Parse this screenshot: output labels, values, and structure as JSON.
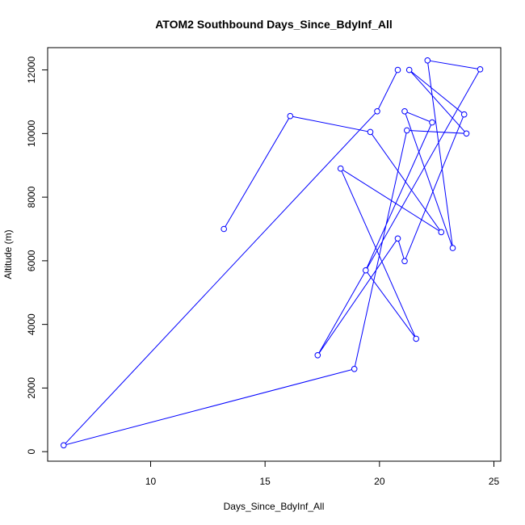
{
  "chart_data": {
    "type": "line",
    "title": "ATOM2 Southbound Days_Since_BdyInf_All",
    "xlabel": "Days_Since_BdyInf_All",
    "ylabel": "Altitude (m)",
    "xlim": [
      5.5,
      25.3
    ],
    "ylim": [
      -300,
      12700
    ],
    "x_ticks": [
      10,
      15,
      20,
      25
    ],
    "y_ticks": [
      0,
      2000,
      4000,
      6000,
      8000,
      10000,
      12000
    ],
    "grid": false,
    "series_color": "#0000ff",
    "series": [
      {
        "marker": "open-circle",
        "x": [
          13.2,
          16.1,
          19.6,
          22.7,
          18.3,
          21.6,
          19.4,
          22.3,
          21.1,
          23.2,
          22.1,
          24.4,
          17.3,
          20.8,
          21.1,
          23.7,
          21.3,
          23.8,
          21.2,
          18.9,
          6.2,
          19.9,
          20.8
        ],
        "y": [
          7000,
          10550,
          10050,
          6900,
          8900,
          3550,
          5700,
          10350,
          10700,
          6400,
          12300,
          12020,
          3030,
          6700,
          5990,
          10600,
          12000,
          10000,
          10100,
          2600,
          200,
          10700,
          12000
        ]
      }
    ]
  }
}
